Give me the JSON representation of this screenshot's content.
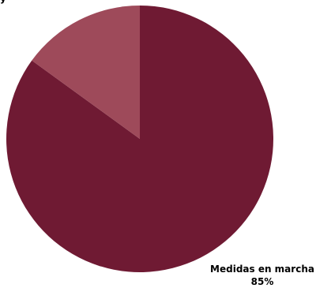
{
  "chart_data": {
    "type": "pie",
    "title": "",
    "slices": [
      {
        "label": "Medidas en marcha",
        "value": 85,
        "value_label": "85%",
        "color": "#6f1a33"
      },
      {
        "label": "",
        "value": 15,
        "value_label": "",
        "color": "#9e4a5a"
      }
    ],
    "top_label_fragment": "y",
    "legend": "none"
  }
}
